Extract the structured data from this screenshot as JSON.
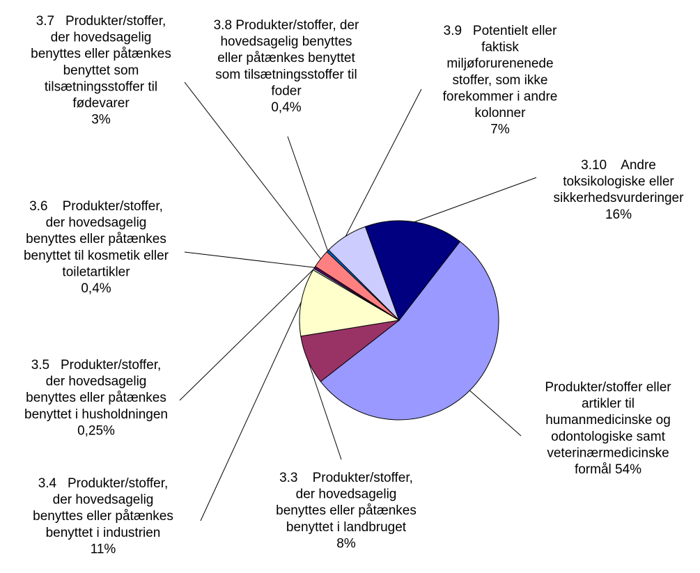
{
  "chart_data": {
    "type": "pie",
    "categories": [
      [
        "Produkter/stoffer eller",
        "artikler til",
        "humanmedicinske og",
        "odontologiske samt",
        "veterinærmedicinske",
        "formål"
      ],
      [
        "3.3    Produkter/stoffer,",
        "der hovedsagelig",
        "benyttes eller påtænkes",
        "benyttet i landbruget"
      ],
      [
        "3.4   Produkter/stoffer,",
        "der hovedsagelig",
        "benyttes eller påtænkes",
        "benyttet i industrien"
      ],
      [
        "3.5   Produkter/stoffer,",
        "der hovedsagelig",
        "benyttes eller påtænkes",
        "benyttet i husholdningen"
      ],
      [
        "3.6    Produkter/stoffer,",
        "der hovedsagelig",
        "benyttes eller påtænkes",
        "benyttet til kosmetik eller",
        "toiletartikler"
      ],
      [
        "3.7   Produkter/stoffer,",
        "der hovedsagelig",
        "benyttes eller påtænkes",
        "benyttet som",
        "tilsætningsstoffer til",
        "fødevarer"
      ],
      [
        "3.8 Produkter/stoffer, der",
        "hovedsagelig benyttes",
        "eller påtænkes benyttet",
        "som tilsætningsstoffer til",
        "foder"
      ],
      [
        "3.9   Potentielt eller",
        "faktisk",
        "miljøforurenenede",
        "stoffer, som ikke",
        "forekommer i andre",
        "kolonner"
      ],
      [
        "3.10    Andre",
        "toksikologiske eller",
        "sikkerhedsvurderinger"
      ]
    ],
    "values": [
      54,
      8,
      11,
      0.25,
      0.4,
      3,
      0.4,
      7,
      16
    ],
    "value_labels": [
      "54%",
      "8%",
      "11%",
      "0,25%",
      "0,4%",
      "3%",
      "0,4%",
      "7%",
      "16%"
    ],
    "colors": [
      "#9999ff",
      "#993366",
      "#ffffcc",
      "#ccffff",
      "#660066",
      "#ff8080",
      "#0066cc",
      "#ccccff",
      "#000080"
    ]
  }
}
